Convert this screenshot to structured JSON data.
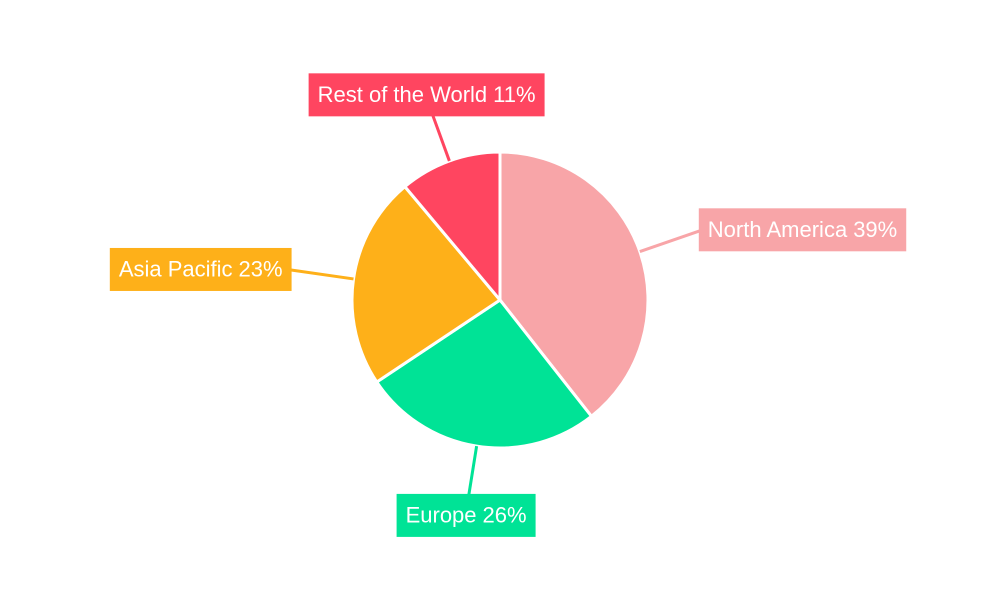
{
  "chart_data": {
    "type": "pie",
    "categories": [
      "North America",
      "Europe",
      "Asia Pacific",
      "Rest of the World"
    ],
    "values": [
      39,
      26,
      23,
      11
    ],
    "value_labels": [
      "39%",
      "26%",
      "23%",
      "11%"
    ],
    "colors": [
      "#f8a5a8",
      "#00e396",
      "#feb019",
      "#ff4560"
    ]
  }
}
